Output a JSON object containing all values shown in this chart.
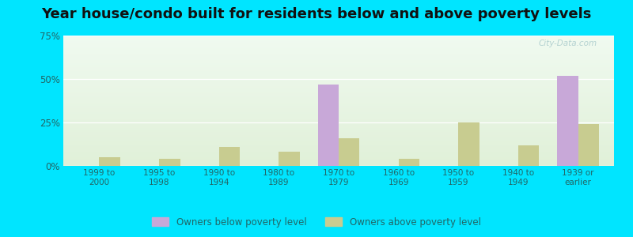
{
  "title": "Year house/condo built for residents below and above poverty levels",
  "categories": [
    "1999 to\n2000",
    "1995 to\n1998",
    "1990 to\n1994",
    "1980 to\n1989",
    "1970 to\n1979",
    "1960 to\n1969",
    "1950 to\n1959",
    "1940 to\n1949",
    "1939 or\nearlier"
  ],
  "below_poverty": [
    0,
    0,
    0,
    0,
    47,
    0,
    0,
    0,
    52
  ],
  "above_poverty": [
    5,
    4,
    11,
    8,
    16,
    4,
    25,
    12,
    24
  ],
  "below_color": "#c8a8d8",
  "above_color": "#c8cc90",
  "outer_bg": "#00e5ff",
  "ylim": [
    0,
    75
  ],
  "yticks": [
    0,
    25,
    50,
    75
  ],
  "ytick_labels": [
    "0%",
    "25%",
    "50%",
    "75%"
  ],
  "title_fontsize": 13,
  "legend_below_label": "Owners below poverty level",
  "legend_above_label": "Owners above poverty level",
  "bar_width": 0.35,
  "grad_top": "#e8f5f0",
  "grad_bottom": "#e0f0d8"
}
